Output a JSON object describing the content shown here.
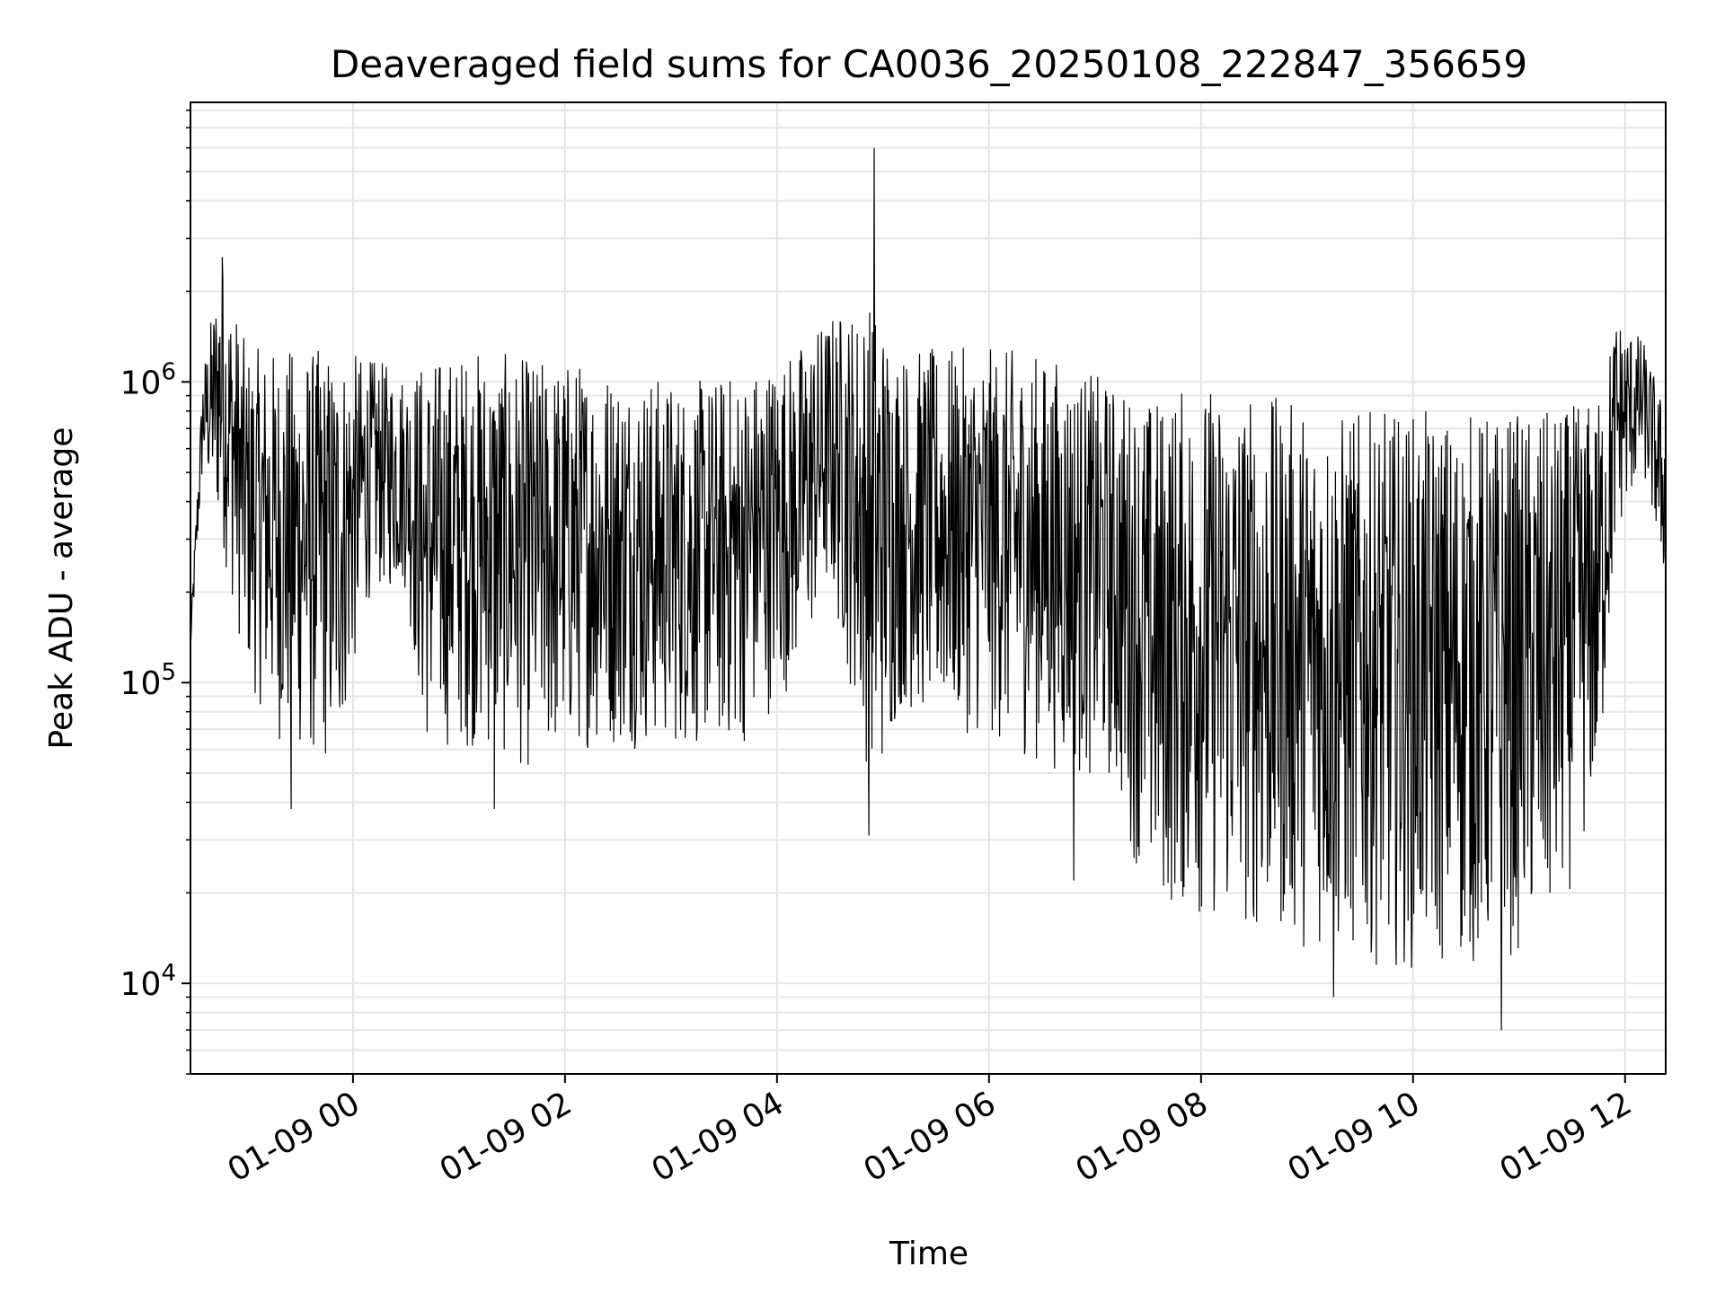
{
  "chart_data": {
    "type": "line",
    "title": "Deaveraged field sums for CA0036_20250108_222847_356659",
    "xlabel": "Time",
    "ylabel": "Peak ADU - average",
    "y_scale": "log",
    "ylim": [
      5000,
      8500000
    ],
    "xlim": [
      "2025-01-08 22:28",
      "2025-01-09 12:23"
    ],
    "grid": true,
    "line_color": "#000000",
    "x_ticks": [
      {
        "label": "01-09 00",
        "value": "2025-01-09 00:00"
      },
      {
        "label": "01-09 02",
        "value": "2025-01-09 02:00"
      },
      {
        "label": "01-09 04",
        "value": "2025-01-09 04:00"
      },
      {
        "label": "01-09 06",
        "value": "2025-01-09 06:00"
      },
      {
        "label": "01-09 08",
        "value": "2025-01-09 08:00"
      },
      {
        "label": "01-09 10",
        "value": "2025-01-09 10:00"
      },
      {
        "label": "01-09 12",
        "value": "2025-01-09 12:00"
      }
    ],
    "y_ticks": [
      {
        "base": "10",
        "exp": "4",
        "value": 10000
      },
      {
        "base": "10",
        "exp": "5",
        "value": 100000
      },
      {
        "base": "10",
        "exp": "6",
        "value": 1000000
      }
    ],
    "series": [
      {
        "envelope": [
          {
            "t": "2025-01-08 22:28",
            "low": 120000,
            "high": 150000
          },
          {
            "t": "2025-01-08 22:35",
            "low": 500000,
            "high": 1100000
          },
          {
            "t": "2025-01-08 22:45",
            "low": 300000,
            "high": 2600000
          },
          {
            "t": "2025-01-08 23:00",
            "low": 100000,
            "high": 1300000
          },
          {
            "t": "2025-01-08 23:20",
            "low": 60000,
            "high": 1300000
          },
          {
            "t": "2025-01-08 23:50",
            "low": 50000,
            "high": 1300000
          },
          {
            "t": "2025-01-09 00:10",
            "low": 200000,
            "high": 1200000
          },
          {
            "t": "2025-01-09 00:30",
            "low": 200000,
            "high": 1100000
          },
          {
            "t": "2025-01-09 00:40",
            "low": 60000,
            "high": 1200000
          },
          {
            "t": "2025-01-09 01:10",
            "low": 60000,
            "high": 1300000
          },
          {
            "t": "2025-01-09 01:40",
            "low": 50000,
            "high": 1200000
          },
          {
            "t": "2025-01-09 02:10",
            "low": 60000,
            "high": 1200000
          },
          {
            "t": "2025-01-09 02:40",
            "low": 60000,
            "high": 1100000
          },
          {
            "t": "2025-01-09 03:10",
            "low": 60000,
            "high": 1000000
          },
          {
            "t": "2025-01-09 03:40",
            "low": 60000,
            "high": 1100000
          },
          {
            "t": "2025-01-09 04:10",
            "low": 100000,
            "high": 1300000
          },
          {
            "t": "2025-01-09 04:30",
            "low": 200000,
            "high": 1700000
          },
          {
            "t": "2025-01-09 04:55",
            "low": 40000,
            "high": 1900000
          },
          {
            "t": "2025-01-09 05:10",
            "low": 80000,
            "high": 1300000
          },
          {
            "t": "2025-01-09 05:40",
            "low": 70000,
            "high": 1300000
          },
          {
            "t": "2025-01-09 06:10",
            "low": 60000,
            "high": 1300000
          },
          {
            "t": "2025-01-09 06:40",
            "low": 50000,
            "high": 1200000
          },
          {
            "t": "2025-01-09 07:10",
            "low": 45000,
            "high": 1000000
          },
          {
            "t": "2025-01-09 07:30",
            "low": 18000,
            "high": 900000
          },
          {
            "t": "2025-01-09 08:00",
            "low": 16000,
            "high": 1000000
          },
          {
            "t": "2025-01-09 08:40",
            "low": 14000,
            "high": 900000
          },
          {
            "t": "2025-01-09 09:20",
            "low": 12000,
            "high": 800000
          },
          {
            "t": "2025-01-09 10:00",
            "low": 11000,
            "high": 800000
          },
          {
            "t": "2025-01-09 10:40",
            "low": 11000,
            "high": 800000
          },
          {
            "t": "2025-01-09 11:20",
            "low": 14000,
            "high": 800000
          },
          {
            "t": "2025-01-09 11:45",
            "low": 40000,
            "high": 900000
          },
          {
            "t": "2025-01-09 11:55",
            "low": 300000,
            "high": 1700000
          },
          {
            "t": "2025-01-09 12:10",
            "low": 500000,
            "high": 1400000
          },
          {
            "t": "2025-01-09 12:23",
            "low": 200000,
            "high": 800000
          }
        ],
        "spikes": [
          {
            "t": "2025-01-08 22:46",
            "value": 2600000
          },
          {
            "t": "2025-01-09 04:55",
            "value": 6000000
          },
          {
            "t": "2025-01-09 04:52",
            "value": 31000
          },
          {
            "t": "2025-01-09 06:48",
            "value": 22000
          },
          {
            "t": "2025-01-09 09:15",
            "value": 9000
          },
          {
            "t": "2025-01-09 10:50",
            "value": 7000
          },
          {
            "t": "2025-01-09 01:20",
            "value": 38000
          },
          {
            "t": "2025-01-08 23:25",
            "value": 38000
          }
        ]
      }
    ]
  }
}
